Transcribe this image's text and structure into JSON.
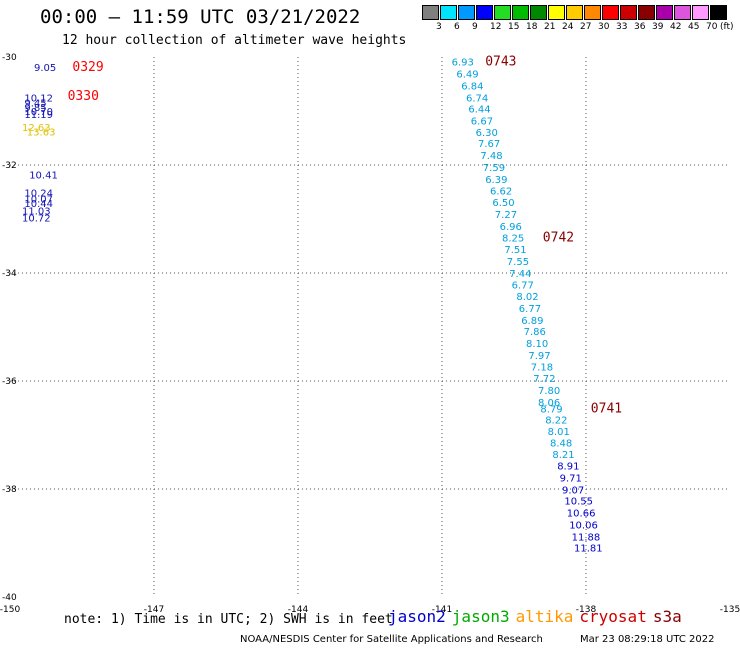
{
  "header": {
    "title": "00:00 – 11:59 UTC 03/21/2022",
    "subtitle": "12 hour collection of altimeter wave heights"
  },
  "colorbar": {
    "colors": [
      "#7f7f7f",
      "#00e5ff",
      "#0099ff",
      "#0000ff",
      "#22dd22",
      "#00bb00",
      "#008800",
      "#ffff00",
      "#ffcc00",
      "#ff8800",
      "#ff0000",
      "#cc0000",
      "#880000",
      "#aa00aa",
      "#dd55dd",
      "#ff99ff",
      "#000000"
    ],
    "labels": [
      "3",
      "6",
      "9",
      "12",
      "15",
      "18",
      "21",
      "24",
      "27",
      "30",
      "33",
      "36",
      "39",
      "42",
      "45",
      "70"
    ],
    "unit": "(ft)"
  },
  "map": {
    "lon_range": [
      -150,
      -135
    ],
    "lat_range": [
      -40,
      -30
    ],
    "x_ticks": [
      "-150",
      "-147",
      "-144",
      "-141",
      "-138",
      "-135"
    ],
    "y_ticks": [
      "-30",
      "-32",
      "-34",
      "-36",
      "-38",
      "-40"
    ],
    "grid": "dotted"
  },
  "tracks": [
    {
      "satellite": "jason2",
      "color": "#1414b4",
      "points": [
        {
          "v": "9.05",
          "lon": -149.5,
          "lat": -30.26
        },
        {
          "v": "10.12",
          "lon": -149.7,
          "lat": -30.82
        },
        {
          "v": "9.45",
          "lon": -149.7,
          "lat": -30.92
        },
        {
          "v": "9.85",
          "lon": -149.7,
          "lat": -31.0
        },
        {
          "v": "10.70",
          "lon": -149.7,
          "lat": -31.07
        },
        {
          "v": "11.19",
          "lon": -149.7,
          "lat": -31.13
        },
        {
          "v": "10.41",
          "lon": -149.6,
          "lat": -32.25
        },
        {
          "v": "10.24",
          "lon": -149.7,
          "lat": -32.58
        },
        {
          "v": "10.07",
          "lon": -149.7,
          "lat": -32.69
        },
        {
          "v": "10.44",
          "lon": -149.7,
          "lat": -32.78
        },
        {
          "v": "11.03",
          "lon": -149.75,
          "lat": -32.92
        },
        {
          "v": "10.72",
          "lon": -149.75,
          "lat": -33.05
        }
      ],
      "pass": {
        "id": "0329",
        "color": "#ff0000",
        "lon": -148.7,
        "lat": -30.26
      }
    },
    {
      "satellite": "jason3",
      "color": "#e0c000",
      "points": [
        {
          "v": "12.63",
          "lon": -149.75,
          "lat": -31.37
        },
        {
          "v": "13.63",
          "lon": -149.65,
          "lat": -31.45
        }
      ],
      "pass": {
        "id": "0330",
        "color": "#ff0000",
        "lon": -148.8,
        "lat": -30.8
      }
    },
    {
      "satellite": "s3a",
      "color": "#00a0dc",
      "points": [
        {
          "v": "6.93",
          "lon": -140.8,
          "lat": -30.16
        },
        {
          "v": "6.49",
          "lon": -140.7,
          "lat": -30.38
        },
        {
          "v": "6.84",
          "lon": -140.6,
          "lat": -30.6
        },
        {
          "v": "6.74",
          "lon": -140.5,
          "lat": -30.82
        },
        {
          "v": "6.44",
          "lon": -140.45,
          "lat": -31.03
        },
        {
          "v": "6.67",
          "lon": -140.4,
          "lat": -31.25
        },
        {
          "v": "6.30",
          "lon": -140.3,
          "lat": -31.46
        },
        {
          "v": "7.67",
          "lon": -140.25,
          "lat": -31.67
        },
        {
          "v": "7.48",
          "lon": -140.2,
          "lat": -31.89
        },
        {
          "v": "7.59",
          "lon": -140.15,
          "lat": -32.11
        },
        {
          "v": "6.39",
          "lon": -140.1,
          "lat": -32.33
        },
        {
          "v": "6.62",
          "lon": -140.0,
          "lat": -32.55
        },
        {
          "v": "6.50",
          "lon": -139.95,
          "lat": -32.76
        },
        {
          "v": "7.27",
          "lon": -139.9,
          "lat": -32.98
        },
        {
          "v": "6.96",
          "lon": -139.8,
          "lat": -33.2
        },
        {
          "v": "8.25",
          "lon": -139.75,
          "lat": -33.42
        },
        {
          "v": "7.51",
          "lon": -139.7,
          "lat": -33.63
        },
        {
          "v": "7.55",
          "lon": -139.65,
          "lat": -33.85
        },
        {
          "v": "7.44",
          "lon": -139.6,
          "lat": -34.07
        },
        {
          "v": "6.77",
          "lon": -139.55,
          "lat": -34.29
        },
        {
          "v": "8.02",
          "lon": -139.45,
          "lat": -34.5
        },
        {
          "v": "6.77",
          "lon": -139.4,
          "lat": -34.72
        },
        {
          "v": "6.89",
          "lon": -139.35,
          "lat": -34.94
        },
        {
          "v": "7.86",
          "lon": -139.3,
          "lat": -35.15
        },
        {
          "v": "8.10",
          "lon": -139.25,
          "lat": -35.37
        },
        {
          "v": "7.97",
          "lon": -139.2,
          "lat": -35.59
        },
        {
          "v": "7.18",
          "lon": -139.15,
          "lat": -35.81
        },
        {
          "v": "7.72",
          "lon": -139.1,
          "lat": -36.02
        },
        {
          "v": "7.80",
          "lon": -139.0,
          "lat": -36.24
        },
        {
          "v": "8.06",
          "lon": -139.0,
          "lat": -36.46
        },
        {
          "v": "8.79",
          "lon": -138.95,
          "lat": -36.58
        },
        {
          "v": "8.22",
          "lon": -138.85,
          "lat": -36.79
        },
        {
          "v": "8.01",
          "lon": -138.8,
          "lat": -37.0
        },
        {
          "v": "8.48",
          "lon": -138.75,
          "lat": -37.21
        },
        {
          "v": "8.21",
          "lon": -138.7,
          "lat": -37.43
        }
      ],
      "pass": {
        "id": "0743",
        "color": "#880000",
        "lon": -140.1,
        "lat": -30.16
      }
    },
    {
      "satellite": "s3a-south",
      "color": "#0000cc",
      "points": [
        {
          "v": "8.91",
          "lon": -138.6,
          "lat": -37.64
        },
        {
          "v": "9.71",
          "lon": -138.55,
          "lat": -37.86
        },
        {
          "v": "9.07",
          "lon": -138.5,
          "lat": -38.08
        },
        {
          "v": "10.55",
          "lon": -138.45,
          "lat": -38.29
        },
        {
          "v": "10.66",
          "lon": -138.4,
          "lat": -38.51
        },
        {
          "v": "10.06",
          "lon": -138.35,
          "lat": -38.73
        },
        {
          "v": "11.88",
          "lon": -138.3,
          "lat": -38.95
        },
        {
          "v": "11.81",
          "lon": -138.25,
          "lat": -39.16
        }
      ],
      "pass": null
    }
  ],
  "extra_passes": [
    {
      "id": "0742",
      "color": "#880000",
      "lon": -138.9,
      "lat": -33.42
    },
    {
      "id": "0741",
      "color": "#880000",
      "lon": -137.9,
      "lat": -36.58
    }
  ],
  "footer": {
    "note": "note:  1) Time is in UTC;  2) SWH is in feet",
    "legend": [
      {
        "name": "jason2",
        "color": "#0000cc"
      },
      {
        "name": "jason3",
        "color": "#00aa00"
      },
      {
        "name": "altika",
        "color": "#ff9900"
      },
      {
        "name": "cryosat",
        "color": "#cc0000"
      },
      {
        "name": "s3a",
        "color": "#880000"
      }
    ],
    "credit": "NOAA/NESDIS Center for Satellite Applications and Research",
    "timestamp": "Mar 23 08:29:18 UTC 2022"
  }
}
